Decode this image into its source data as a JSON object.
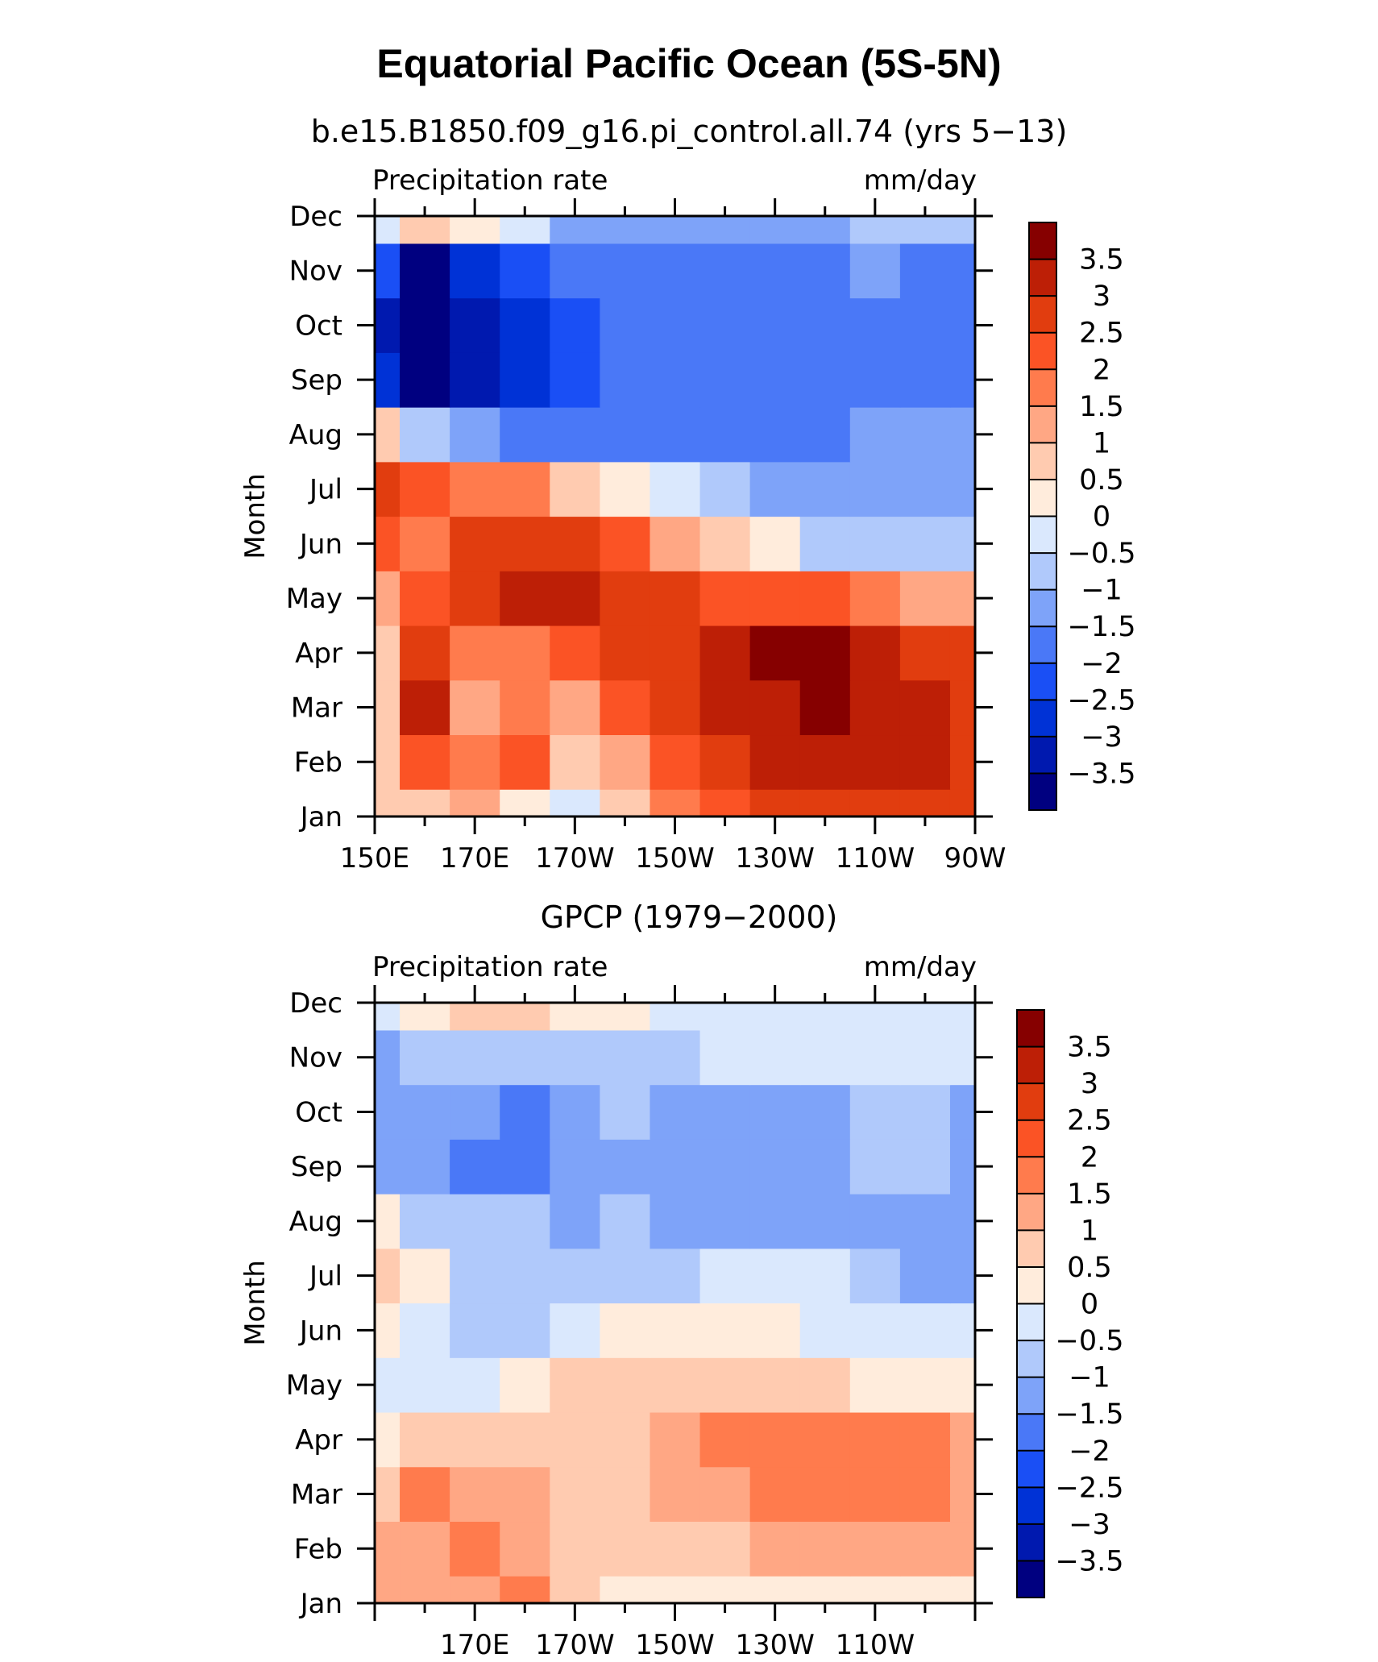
{
  "figure_title": "Equatorial Pacific Ocean (5S-5N)",
  "colorbar_levels": [
    "3.5",
    "3",
    "2.5",
    "2",
    "1.5",
    "1",
    "0.5",
    "0",
    "−0.5",
    "−1",
    "−1.5",
    "−2",
    "−2.5",
    "−3",
    "−3.5"
  ],
  "colors": {
    "bins": [
      "#000080",
      "#0019AF",
      "#0032D6",
      "#1A4FF5",
      "#4A78F7",
      "#7EA3F9",
      "#B0C9FB",
      "#DAE8FD",
      "#FFECDC",
      "#FFCBB0",
      "#FFA784",
      "#FF7B4D",
      "#FB5325",
      "#E13D0F",
      "#BD1F06",
      "#860000"
    ]
  },
  "chart_data": [
    {
      "type": "heatmap",
      "subtitle": "b.e15.B1850.f09_g16.pi_control.all.74 (yrs 5−13)",
      "left_label": "Precipitation rate",
      "right_label": "mm/day",
      "ylabel": "Month",
      "xlabel": "",
      "x_tick_labels": [
        "150E",
        "170E",
        "170W",
        "150W",
        "130W",
        "110W",
        "90W"
      ],
      "y_tick_labels": [
        "Jan",
        "Feb",
        "Mar",
        "Apr",
        "May",
        "Jun",
        "Jul",
        "Aug",
        "Sep",
        "Oct",
        "Nov",
        "Dec"
      ],
      "x": [
        150,
        160,
        170,
        180,
        190,
        200,
        210,
        220,
        230,
        240,
        250,
        260,
        270
      ],
      "zlim": [
        -4,
        4
      ],
      "values": [
        [
          0.6,
          0.8,
          1.0,
          0.3,
          -0.3,
          0.6,
          1.5,
          2.2,
          2.5,
          2.7,
          2.7,
          2.7,
          2.6
        ],
        [
          0.9,
          2.0,
          1.6,
          2.4,
          0.9,
          1.3,
          2.2,
          2.9,
          3.0,
          3.1,
          3.1,
          3.0,
          2.8
        ],
        [
          0.8,
          3.2,
          1.3,
          1.6,
          1.4,
          2.2,
          2.7,
          3.1,
          3.4,
          3.6,
          3.2,
          3.0,
          2.9
        ],
        [
          0.7,
          2.7,
          1.5,
          1.8,
          2.4,
          2.6,
          2.9,
          3.4,
          3.9,
          3.5,
          3.0,
          2.8,
          2.6
        ],
        [
          1.4,
          2.0,
          2.7,
          3.1,
          3.3,
          2.9,
          2.6,
          2.4,
          2.2,
          2.0,
          1.6,
          1.2,
          1.0
        ],
        [
          2.4,
          1.9,
          2.6,
          2.8,
          2.7,
          2.0,
          1.2,
          0.6,
          0.0,
          -0.6,
          -1.0,
          -1.0,
          -0.8
        ],
        [
          2.5,
          2.2,
          1.9,
          1.6,
          0.9,
          0.2,
          -0.5,
          -1.0,
          -1.4,
          -1.5,
          -1.4,
          -1.4,
          -1.4
        ],
        [
          0.6,
          -0.6,
          -1.5,
          -1.6,
          -1.6,
          -1.6,
          -1.6,
          -1.6,
          -1.6,
          -1.6,
          -1.2,
          -1.1,
          -1.2
        ],
        [
          -2.6,
          -3.8,
          -3.3,
          -2.6,
          -2.1,
          -1.8,
          -1.7,
          -1.7,
          -1.7,
          -1.7,
          -1.7,
          -1.6,
          -1.7
        ],
        [
          -3.2,
          -4.2,
          -3.5,
          -2.8,
          -2.3,
          -2.0,
          -1.8,
          -1.8,
          -1.8,
          -1.8,
          -1.8,
          -1.8,
          -2.0
        ],
        [
          -2.5,
          -3.6,
          -3.0,
          -2.4,
          -1.8,
          -1.9,
          -1.8,
          -1.7,
          -1.6,
          -1.6,
          -1.5,
          -1.7,
          -1.6
        ],
        [
          -0.2,
          0.6,
          0.1,
          -0.5,
          -1.2,
          -1.2,
          -1.1,
          -1.1,
          -1.1,
          -1.1,
          -0.9,
          -1.0,
          -1.0
        ]
      ]
    },
    {
      "type": "heatmap",
      "subtitle": "GPCP (1979−2000)",
      "left_label": "Precipitation rate",
      "right_label": "mm/day",
      "ylabel": "Month",
      "xlabel": "",
      "x_tick_labels": [
        "",
        "170E",
        "170W",
        "150W",
        "130W",
        "110W",
        ""
      ],
      "y_tick_labels": [
        "Jan",
        "Feb",
        "Mar",
        "Apr",
        "May",
        "Jun",
        "Jul",
        "Aug",
        "Sep",
        "Oct",
        "Nov",
        "Dec"
      ],
      "x": [
        150,
        160,
        170,
        180,
        190,
        200,
        210,
        220,
        230,
        240,
        250,
        260,
        270
      ],
      "zlim": [
        -4,
        4
      ],
      "values": [
        [
          1.1,
          1.2,
          1.3,
          1.7,
          0.6,
          0.3,
          0.2,
          0.2,
          0.2,
          0.2,
          0.2,
          0.2,
          0.3
        ],
        [
          1.2,
          1.3,
          1.6,
          1.4,
          0.6,
          0.5,
          0.7,
          0.9,
          1.0,
          1.1,
          1.1,
          1.1,
          1.2
        ],
        [
          0.7,
          1.6,
          1.4,
          1.2,
          0.5,
          0.9,
          1.3,
          1.4,
          1.7,
          1.9,
          1.8,
          1.9,
          1.4
        ],
        [
          0.4,
          0.6,
          0.9,
          0.7,
          0.6,
          0.8,
          1.1,
          1.5,
          1.7,
          1.6,
          1.5,
          1.8,
          1.4
        ],
        [
          -0.2,
          -0.1,
          -0.4,
          0.2,
          0.7,
          0.9,
          0.9,
          0.7,
          0.6,
          0.5,
          0.3,
          0.3,
          0.2
        ],
        [
          0.2,
          -0.3,
          -0.6,
          -0.8,
          -0.4,
          0.0,
          0.3,
          0.1,
          0.0,
          -0.2,
          -0.4,
          -0.4,
          -0.4
        ],
        [
          0.7,
          0.2,
          -0.6,
          -0.7,
          -0.9,
          -0.8,
          -0.6,
          -0.5,
          -0.5,
          -0.5,
          -0.8,
          -1.1,
          -1.3
        ],
        [
          0.3,
          -0.6,
          -0.8,
          -1.0,
          -1.1,
          -1.0,
          -1.1,
          -1.3,
          -1.3,
          -1.3,
          -1.1,
          -1.2,
          -1.1
        ],
        [
          -1.5,
          -1.2,
          -1.6,
          -2.0,
          -1.5,
          -1.2,
          -1.1,
          -1.3,
          -1.4,
          -1.3,
          -0.9,
          -1.0,
          -1.2
        ],
        [
          -1.1,
          -1.2,
          -1.5,
          -1.8,
          -1.2,
          -1.0,
          -1.1,
          -1.2,
          -1.3,
          -1.2,
          -0.9,
          -0.9,
          -1.4
        ],
        [
          -1.1,
          -0.8,
          -0.7,
          -0.9,
          -0.9,
          -0.8,
          -0.6,
          -0.5,
          -0.5,
          -0.5,
          -0.5,
          -0.5,
          -0.5
        ],
        [
          -0.3,
          0.2,
          0.9,
          0.8,
          0.4,
          0.1,
          -0.2,
          -0.3,
          -0.3,
          -0.3,
          -0.2,
          -0.2,
          -0.2
        ]
      ]
    }
  ]
}
